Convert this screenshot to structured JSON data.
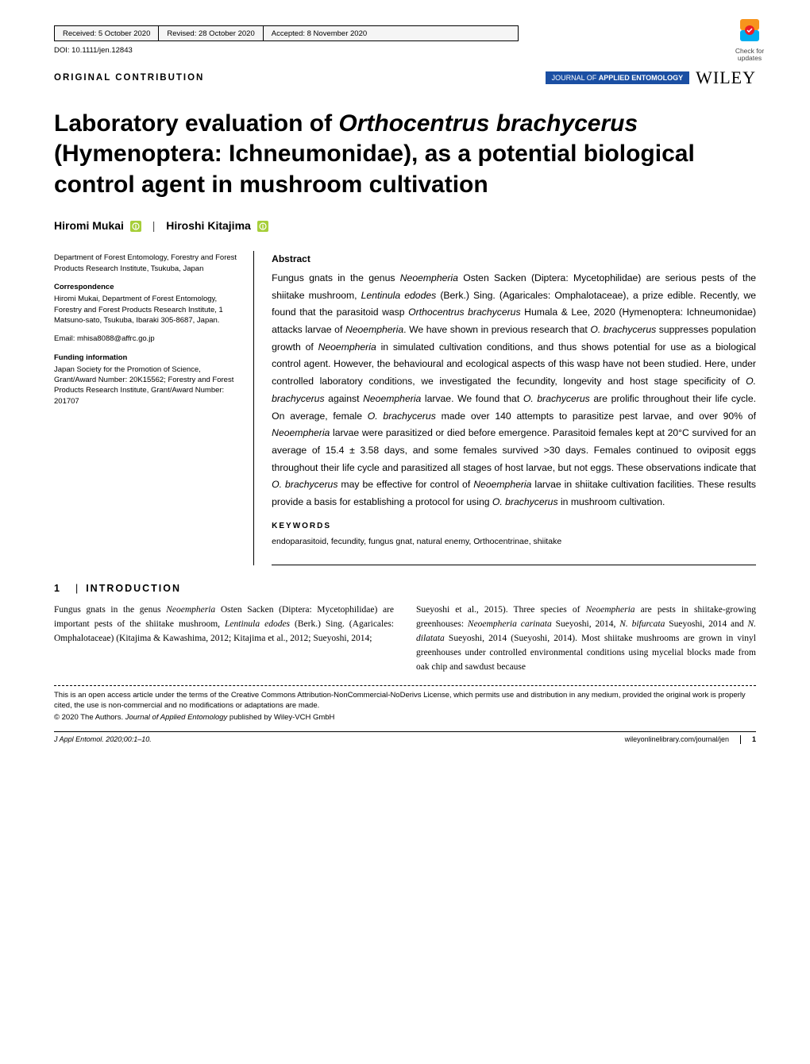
{
  "meta": {
    "received": "Received: 5 October 2020",
    "revised": "Revised: 28 October 2020",
    "accepted": "Accepted: 8 November 2020",
    "doi": "DOI: 10.1111/jen.12843",
    "check_updates_line1": "Check for",
    "check_updates_line2": "updates",
    "check_icon_colors": {
      "top": "#f7941d",
      "bottom": "#00aeef",
      "circle": "#ed1c24"
    }
  },
  "header": {
    "contribution_label": "ORIGINAL CONTRIBUTION",
    "journal_badge_prefix": "JOURNAL OF ",
    "journal_badge_bold": "APPLIED ENTOMOLOGY",
    "journal_badge_bg": "#1b4fa3",
    "publisher": "WILEY"
  },
  "title": "Laboratory evaluation of Orthocentrus brachycerus (Hymenoptera: Ichneumonidae), as a potential biological control agent in mushroom cultivation",
  "title_html": "Laboratory evaluation of <em>Orthocentrus brachycerus</em> (Hymenoptera: Ichneumonidae), as a potential biological control agent in mushroom cultivation",
  "authors": {
    "a1": "Hiromi Mukai",
    "a2": "Hiroshi Kitajima",
    "orcid_color": "#a6ce39"
  },
  "sidebar": {
    "affiliation": "Department of Forest Entomology, Forestry and Forest Products Research Institute, Tsukuba, Japan",
    "correspondence_label": "Correspondence",
    "correspondence": "Hiromi Mukai, Department of Forest Entomology, Forestry and Forest Products Research Institute, 1 Matsuno-sato, Tsukuba, Ibaraki 305-8687, Japan.",
    "email": "Email: mhisa8088@affrc.go.jp",
    "funding_label": "Funding information",
    "funding": "Japan Society for the Promotion of Science, Grant/Award Number: 20K15562; Forestry and Forest Products Research Institute, Grant/Award Number: 201707"
  },
  "abstract": {
    "label": "Abstract",
    "text_html": "Fungus gnats in the genus <em>Neoempheria</em> Osten Sacken (Diptera: Mycetophilidae) are serious pests of the shiitake mushroom, <em>Lentinula edodes</em> (Berk.) Sing. (Agaricales: Omphalotaceae), a prize edible. Recently, we found that the parasitoid wasp <em>Orthocentrus brachycerus</em> Humala & Lee, 2020 (Hymenoptera: Ichneumonidae) attacks larvae of <em>Neoempheria</em>. We have shown in previous research that <em>O. brachycerus</em> suppresses population growth of <em>Neoempheria</em> in simulated cultivation conditions, and thus shows potential for use as a biological control agent. However, the behavioural and ecological aspects of this wasp have not been studied. Here, under controlled laboratory conditions, we investigated the fecundity, longevity and host stage specificity of <em>O. brachycerus</em> against <em>Neoempheria</em> larvae. We found that <em>O. brachycerus</em> are prolific throughout their life cycle. On average, female <em>O. brachycerus</em> made over 140 attempts to parasitize pest larvae, and over 90% of <em>Neoempheria</em> larvae were parasitized or died before emergence. Parasitoid females kept at 20°C survived for an average of 15.4 ± 3.58 days, and some females survived >30 days. Females continued to oviposit eggs throughout their life cycle and parasitized all stages of host larvae, but not eggs. These observations indicate that <em>O. brachycerus</em> may be effective for control of <em>Neoempheria</em> larvae in shiitake cultivation facilities. These results provide a basis for establishing a protocol for using <em>O. brachycerus</em> in mushroom cultivation.",
    "keywords_label": "KEYWORDS",
    "keywords": "endoparasitoid, fecundity, fungus gnat, natural enemy, Orthocentrinae, shiitake"
  },
  "section": {
    "num": "1",
    "title": "INTRODUCTION"
  },
  "body": {
    "col1_html": "Fungus gnats in the genus <em>Neoempheria</em> Osten Sacken (Diptera: Mycetophilidae) are important pests of the shiitake mushroom, <em>Lentinula edodes</em> (Berk.) Sing. (Agaricales: Omphalotaceae) (Kitajima & Kawashima, 2012; Kitajima et al., 2012; Sueyoshi, 2014;",
    "col2_html": "Sueyoshi et al., 2015). Three species of <em>Neoempheria</em> are pests in shiitake-growing greenhouses: <em>Neoempheria carinata</em> Sueyoshi, 2014, <em>N. bifurcata</em> Sueyoshi, 2014 and <em>N. dilatata</em> Sueyoshi, 2014 (Sueyoshi, 2014). Most shiitake mushrooms are grown in vinyl greenhouses under controlled environmental conditions using mycelial blocks made from oak chip and sawdust because"
  },
  "license": {
    "line1": "This is an open access article under the terms of the Creative Commons Attribution-NonCommercial-NoDerivs License, which permits use and distribution in any medium, provided the original work is properly cited, the use is non-commercial and no modifications or adaptations are made.",
    "line2_html": "© 2020 The Authors. <em>Journal of Applied Entomology</em> published by Wiley-VCH GmbH"
  },
  "footer": {
    "left": "J Appl Entomol. 2020;00:1–10.",
    "url": "wileyonlinelibrary.com/journal/jen",
    "page": "1"
  },
  "style": {
    "page_background": "#ffffff",
    "body_font": "Times New Roman",
    "ui_font": "Arial",
    "title_fontsize": 30,
    "abstract_fontsize": 12.2,
    "sidebar_fontsize": 9.5
  }
}
